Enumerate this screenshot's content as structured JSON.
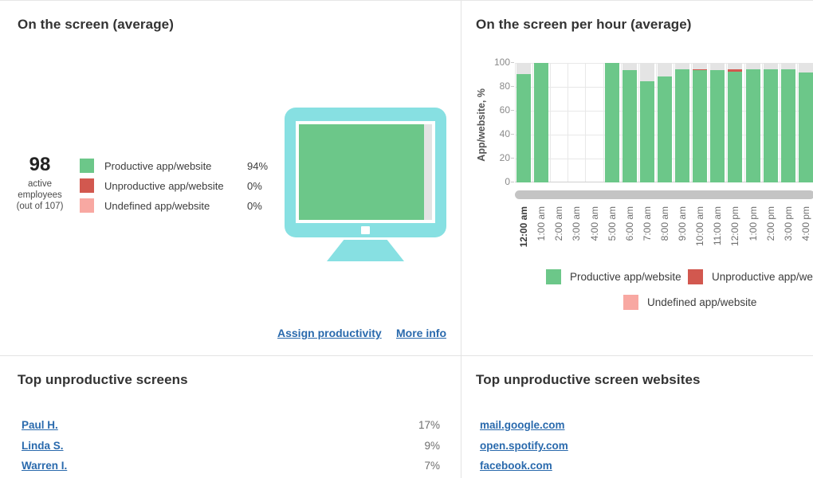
{
  "accent_colors": {
    "link_blue": "#2A6AAD",
    "monitor_teal": "#87E0E2"
  },
  "panels": {
    "screen_average": {
      "title": "On the screen (average)",
      "stat": {
        "value": "98",
        "lines": [
          "active",
          "employees",
          "(out of 107)"
        ]
      },
      "legend": [
        {
          "label": "Productive app/website",
          "value": "94%",
          "color": "#6CC789"
        },
        {
          "label": "Unproductive app/website",
          "value": "0%",
          "color": "#D2584F"
        },
        {
          "label": "Undefined app/website",
          "value": "0%",
          "color": "#F8A8A2"
        }
      ],
      "screen_split": {
        "productive_pct": 94,
        "rest_pct": 6
      },
      "links": [
        {
          "label": "Assign productivity"
        },
        {
          "label": "More info"
        }
      ]
    },
    "screen_per_hour": {
      "title": "On the screen per hour (average)"
    },
    "top_unproductive_screens": {
      "title": "Top unproductive screens",
      "rows": [
        {
          "name": "Paul H.",
          "value": "17%"
        },
        {
          "name": "Linda S.",
          "value": "9%"
        },
        {
          "name": "Warren I.",
          "value": "7%"
        }
      ]
    },
    "top_unproductive_websites": {
      "title": "Top unproductive screen websites",
      "rows": [
        {
          "name": "mail.google.com"
        },
        {
          "name": "open.spotify.com"
        },
        {
          "name": "facebook.com"
        }
      ]
    }
  },
  "chart_data": {
    "type": "bar",
    "stacked": true,
    "title": "On the screen per hour (average)",
    "ylabel": "App/website, %",
    "ylim": [
      0,
      100
    ],
    "yticks": [
      0,
      20,
      40,
      60,
      80,
      100
    ],
    "grid": true,
    "legend_position": "bottom",
    "categories": [
      "12:00 am",
      "1:00 am",
      "2:00 am",
      "3:00 am",
      "4:00 am",
      "5:00 am",
      "6:00 am",
      "7:00 am",
      "8:00 am",
      "9:00 am",
      "10:00 am",
      "11:00 am",
      "12:00 pm",
      "1:00 pm",
      "2:00 pm",
      "3:00 pm",
      "4:00 pm"
    ],
    "series": [
      {
        "name": "Productive app/website",
        "color": "#6CC789",
        "values": [
          91,
          100,
          null,
          null,
          null,
          100,
          94,
          85,
          89,
          95,
          94,
          94,
          93,
          95,
          95,
          95,
          92
        ]
      },
      {
        "name": "Unproductive app/website",
        "color": "#D2584F",
        "values": [
          0,
          0,
          null,
          null,
          null,
          0,
          0,
          0,
          0,
          0,
          1,
          0,
          2,
          0,
          0,
          0,
          0
        ]
      },
      {
        "name": "Undefined app/website",
        "color": "#F8A8A2",
        "values": [
          0,
          0,
          null,
          null,
          null,
          0,
          0,
          0,
          0,
          0,
          0,
          0,
          0,
          0,
          0,
          0,
          0
        ]
      }
    ],
    "remainder_color": "#E4E4E4",
    "no_data_hours": [
      "2:00 am",
      "3:00 am",
      "4:00 am"
    ]
  }
}
